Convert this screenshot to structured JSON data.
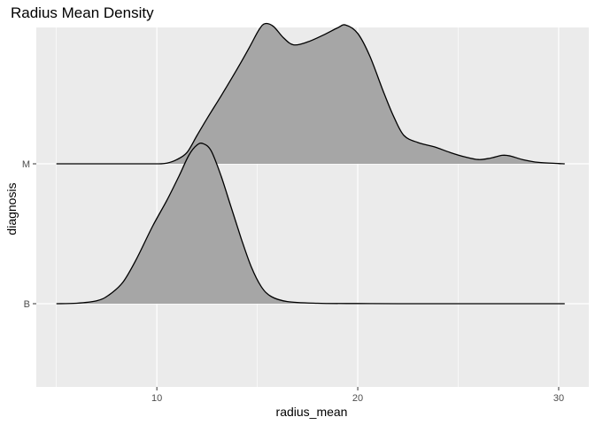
{
  "chart_data": {
    "type": "area",
    "title": "Radius Mean Density",
    "xlabel": "radius_mean",
    "ylabel": "diagnosis",
    "xlim": [
      4,
      31.5
    ],
    "x_ticks": [
      10,
      20,
      30
    ],
    "x_minor_ticks": [
      5,
      15,
      25
    ],
    "categories": [
      "B",
      "M"
    ],
    "grid": true,
    "fill_color": "#a6a6a6",
    "line_color": "#000000",
    "panel_color": "#ebebeb",
    "series": [
      {
        "name": "M",
        "points": [
          [
            5,
            0
          ],
          [
            6,
            0
          ],
          [
            7,
            0
          ],
          [
            8,
            0
          ],
          [
            9,
            0
          ],
          [
            10,
            0
          ],
          [
            10.5,
            0.005
          ],
          [
            11,
            0.03
          ],
          [
            11.5,
            0.08
          ],
          [
            12,
            0.2
          ],
          [
            12.5,
            0.32
          ],
          [
            13.2,
            0.48
          ],
          [
            14,
            0.67
          ],
          [
            14.6,
            0.82
          ],
          [
            15.1,
            0.95
          ],
          [
            15.4,
            0.99
          ],
          [
            15.8,
            0.97
          ],
          [
            16.3,
            0.89
          ],
          [
            16.8,
            0.84
          ],
          [
            17.5,
            0.86
          ],
          [
            18.3,
            0.91
          ],
          [
            19,
            0.96
          ],
          [
            19.4,
            0.98
          ],
          [
            20,
            0.92
          ],
          [
            20.6,
            0.76
          ],
          [
            21.3,
            0.5
          ],
          [
            21.8,
            0.33
          ],
          [
            22.3,
            0.2
          ],
          [
            23,
            0.15
          ],
          [
            23.8,
            0.12
          ],
          [
            24.6,
            0.08
          ],
          [
            25.3,
            0.05
          ],
          [
            26,
            0.03
          ],
          [
            26.6,
            0.04
          ],
          [
            27.2,
            0.06
          ],
          [
            27.6,
            0.055
          ],
          [
            28.2,
            0.03
          ],
          [
            29,
            0.01
          ],
          [
            30,
            0.002
          ],
          [
            30.3,
            0
          ]
        ]
      },
      {
        "name": "B",
        "points": [
          [
            5,
            0
          ],
          [
            6,
            0.003
          ],
          [
            7,
            0.02
          ],
          [
            7.6,
            0.06
          ],
          [
            8.3,
            0.15
          ],
          [
            9,
            0.32
          ],
          [
            9.8,
            0.55
          ],
          [
            10.5,
            0.73
          ],
          [
            11.1,
            0.9
          ],
          [
            11.6,
            1.05
          ],
          [
            12,
            1.12
          ],
          [
            12.3,
            1.13
          ],
          [
            12.7,
            1.08
          ],
          [
            13.2,
            0.9
          ],
          [
            13.7,
            0.68
          ],
          [
            14.2,
            0.46
          ],
          [
            14.7,
            0.26
          ],
          [
            15.2,
            0.12
          ],
          [
            15.7,
            0.05
          ],
          [
            16.5,
            0.015
          ],
          [
            18,
            0.003
          ],
          [
            20,
            0.001
          ],
          [
            22,
            0
          ],
          [
            25,
            0
          ],
          [
            28,
            0
          ],
          [
            30.3,
            0
          ]
        ]
      }
    ]
  }
}
